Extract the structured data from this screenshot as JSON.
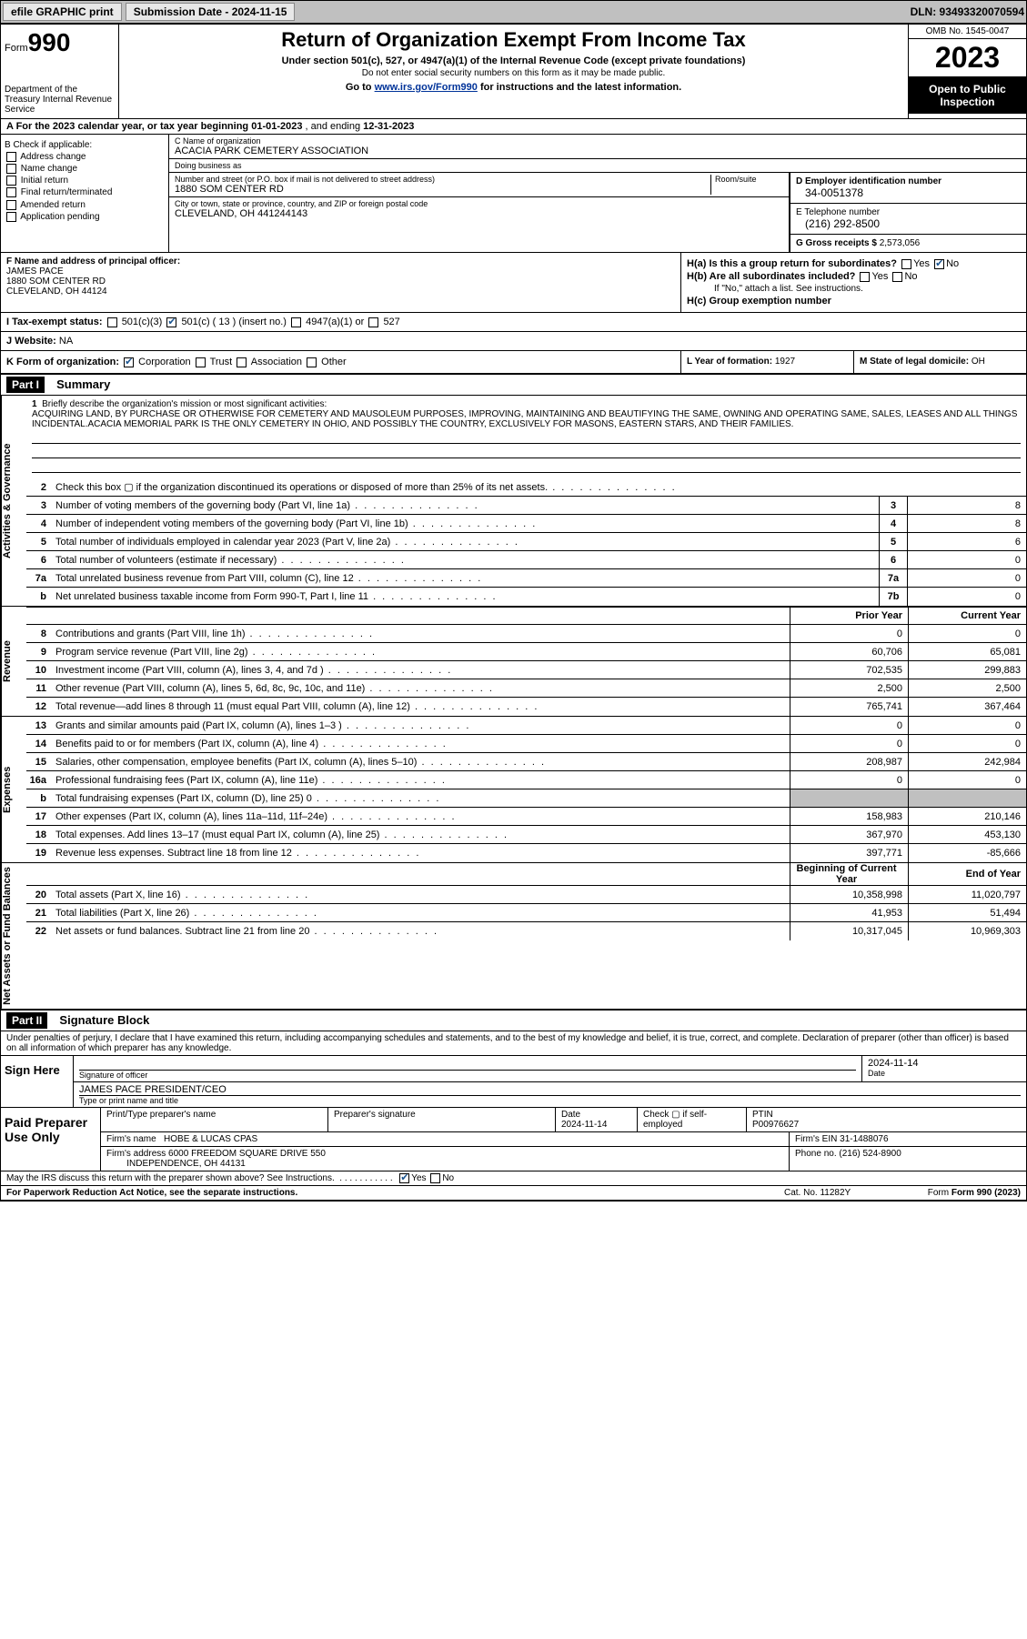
{
  "topbar": {
    "efile": "efile GRAPHIC print",
    "submission_label": "Submission Date - 2024-11-15",
    "dln": "DLN: 93493320070594"
  },
  "header": {
    "form_prefix": "Form",
    "form_num": "990",
    "title": "Return of Organization Exempt From Income Tax",
    "subtitle": "Under section 501(c), 527, or 4947(a)(1) of the Internal Revenue Code (except private foundations)",
    "ssn_note": "Do not enter social security numbers on this form as it may be made public.",
    "link_prefix": "Go to ",
    "link_url": "www.irs.gov/Form990",
    "link_suffix": " for instructions and the latest information.",
    "dept": "Department of the Treasury\nInternal Revenue Service",
    "omb": "OMB No. 1545-0047",
    "year": "2023",
    "inspect": "Open to Public Inspection"
  },
  "row_a": {
    "prefix": "A For the 2023 calendar year, or tax year beginning ",
    "begin": "01-01-2023",
    "mid": " , and ending ",
    "end": "12-31-2023"
  },
  "section_b": {
    "label": "B Check if applicable:",
    "items": [
      "Address change",
      "Name change",
      "Initial return",
      "Final return/terminated",
      "Amended return",
      "Application pending"
    ]
  },
  "section_c": {
    "name_lbl": "C Name of organization",
    "name": "ACACIA PARK CEMETERY ASSOCIATION",
    "dba_lbl": "Doing business as",
    "dba": "",
    "addr_lbl": "Number and street (or P.O. box if mail is not delivered to street address)",
    "room_lbl": "Room/suite",
    "addr": "1880 SOM CENTER RD",
    "city_lbl": "City or town, state or province, country, and ZIP or foreign postal code",
    "city": "CLEVELAND, OH  441244143"
  },
  "section_d": {
    "lbl": "D Employer identification number",
    "val": "34-0051378"
  },
  "section_e": {
    "lbl": "E Telephone number",
    "val": "(216) 292-8500"
  },
  "section_g": {
    "lbl": "G Gross receipts $",
    "val": "2,573,056"
  },
  "section_f": {
    "lbl": "F Name and address of principal officer:",
    "name": "JAMES PACE",
    "addr1": "1880 SOM CENTER RD",
    "addr2": "CLEVELAND, OH  44124"
  },
  "section_h": {
    "ha": "H(a)  Is this a group return for subordinates?",
    "hb": "H(b)  Are all subordinates included?",
    "hb_note": "If \"No,\" attach a list. See instructions.",
    "hc": "H(c)  Group exemption number ",
    "yes": "Yes",
    "no": "No"
  },
  "section_i": {
    "lbl": "I  Tax-exempt status:",
    "c3": "501(c)(3)",
    "c": "501(c) ( 13 ) (insert no.)",
    "a1": "4947(a)(1) or",
    "s527": "527"
  },
  "section_j": {
    "lbl": "J  Website: ",
    "val": "NA"
  },
  "section_k": {
    "lbl": "K Form of organization:",
    "corp": "Corporation",
    "trust": "Trust",
    "assoc": "Association",
    "other": "Other"
  },
  "section_l": {
    "lbl": "L Year of formation: ",
    "val": "1927"
  },
  "section_m": {
    "lbl": "M State of legal domicile: ",
    "val": "OH"
  },
  "part1": {
    "hdr": "Part I",
    "title": "Summary",
    "mission_lbl": "Briefly describe the organization's mission or most significant activities:",
    "mission": "ACQUIRING LAND, BY PURCHASE OR OTHERWISE FOR CEMETERY AND MAUSOLEUM PURPOSES, IMPROVING, MAINTAINING AND BEAUTIFYING THE SAME, OWNING AND OPERATING SAME, SALES, LEASES AND ALL THINGS INCIDENTAL.ACACIA MEMORIAL PARK IS THE ONLY CEMETERY IN OHIO, AND POSSIBLY THE COUNTRY, EXCLUSIVELY FOR MASONS, EASTERN STARS, AND THEIR FAMILIES."
  },
  "sidelabels": {
    "gov": "Activities & Governance",
    "rev": "Revenue",
    "exp": "Expenses",
    "net": "Net Assets or Fund Balances"
  },
  "lines_gov": [
    {
      "n": "2",
      "t": "Check this box  ▢  if the organization discontinued its operations or disposed of more than 25% of its net assets."
    },
    {
      "n": "3",
      "t": "Number of voting members of the governing body (Part VI, line 1a)",
      "box": "3",
      "v": "8"
    },
    {
      "n": "4",
      "t": "Number of independent voting members of the governing body (Part VI, line 1b)",
      "box": "4",
      "v": "8"
    },
    {
      "n": "5",
      "t": "Total number of individuals employed in calendar year 2023 (Part V, line 2a)",
      "box": "5",
      "v": "6"
    },
    {
      "n": "6",
      "t": "Total number of volunteers (estimate if necessary)",
      "box": "6",
      "v": "0"
    },
    {
      "n": "7a",
      "t": "Total unrelated business revenue from Part VIII, column (C), line 12",
      "box": "7a",
      "v": "0"
    },
    {
      "n": "b",
      "t": "Net unrelated business taxable income from Form 990-T, Part I, line 11",
      "box": "7b",
      "v": "0"
    }
  ],
  "col_headers": {
    "prior": "Prior Year",
    "current": "Current Year",
    "boy": "Beginning of Current Year",
    "eoy": "End of Year"
  },
  "lines_rev": [
    {
      "n": "8",
      "t": "Contributions and grants (Part VIII, line 1h)",
      "p": "0",
      "c": "0"
    },
    {
      "n": "9",
      "t": "Program service revenue (Part VIII, line 2g)",
      "p": "60,706",
      "c": "65,081"
    },
    {
      "n": "10",
      "t": "Investment income (Part VIII, column (A), lines 3, 4, and 7d )",
      "p": "702,535",
      "c": "299,883"
    },
    {
      "n": "11",
      "t": "Other revenue (Part VIII, column (A), lines 5, 6d, 8c, 9c, 10c, and 11e)",
      "p": "2,500",
      "c": "2,500"
    },
    {
      "n": "12",
      "t": "Total revenue—add lines 8 through 11 (must equal Part VIII, column (A), line 12)",
      "p": "765,741",
      "c": "367,464"
    }
  ],
  "lines_exp": [
    {
      "n": "13",
      "t": "Grants and similar amounts paid (Part IX, column (A), lines 1–3 )",
      "p": "0",
      "c": "0"
    },
    {
      "n": "14",
      "t": "Benefits paid to or for members (Part IX, column (A), line 4)",
      "p": "0",
      "c": "0"
    },
    {
      "n": "15",
      "t": "Salaries, other compensation, employee benefits (Part IX, column (A), lines 5–10)",
      "p": "208,987",
      "c": "242,984"
    },
    {
      "n": "16a",
      "t": "Professional fundraising fees (Part IX, column (A), line 11e)",
      "p": "0",
      "c": "0"
    },
    {
      "n": "b",
      "t": "Total fundraising expenses (Part IX, column (D), line 25) 0",
      "grey": true
    },
    {
      "n": "17",
      "t": "Other expenses (Part IX, column (A), lines 11a–11d, 11f–24e)",
      "p": "158,983",
      "c": "210,146"
    },
    {
      "n": "18",
      "t": "Total expenses. Add lines 13–17 (must equal Part IX, column (A), line 25)",
      "p": "367,970",
      "c": "453,130"
    },
    {
      "n": "19",
      "t": "Revenue less expenses. Subtract line 18 from line 12",
      "p": "397,771",
      "c": "-85,666"
    }
  ],
  "lines_net": [
    {
      "n": "20",
      "t": "Total assets (Part X, line 16)",
      "p": "10,358,998",
      "c": "11,020,797"
    },
    {
      "n": "21",
      "t": "Total liabilities (Part X, line 26)",
      "p": "41,953",
      "c": "51,494"
    },
    {
      "n": "22",
      "t": "Net assets or fund balances. Subtract line 21 from line 20",
      "p": "10,317,045",
      "c": "10,969,303"
    }
  ],
  "part2": {
    "hdr": "Part II",
    "title": "Signature Block"
  },
  "penalty": "Under penalties of perjury, I declare that I have examined this return, including accompanying schedules and statements, and to the best of my knowledge and belief, it is true, correct, and complete. Declaration of preparer (other than officer) is based on all information of which preparer has any knowledge.",
  "sign": {
    "lbl": "Sign Here",
    "sig_lbl": "Signature of officer",
    "date_lbl": "Date",
    "date": "2024-11-14",
    "name_lbl": "Type or print name and title",
    "name": "JAMES PACE  PRESIDENT/CEO"
  },
  "prep": {
    "lbl": "Paid Preparer Use Only",
    "name_lbl": "Print/Type preparer's name",
    "name": "",
    "sig_lbl": "Preparer's signature",
    "date_lbl": "Date",
    "date": "2024-11-14",
    "self_lbl": "Check ▢ if self-employed",
    "ptin_lbl": "PTIN",
    "ptin": "P00976627",
    "firm_name_lbl": "Firm's name ",
    "firm_name": "HOBE & LUCAS CPAS",
    "firm_ein_lbl": "Firm's EIN ",
    "firm_ein": "31-1488076",
    "firm_addr_lbl": "Firm's address ",
    "firm_addr1": "6000 FREEDOM SQUARE DRIVE 550",
    "firm_addr2": "INDEPENDENCE, OH  44131",
    "phone_lbl": "Phone no. ",
    "phone": "(216) 524-8900"
  },
  "discuss": {
    "txt": "May the IRS discuss this return with the preparer shown above? See Instructions.",
    "yes": "Yes",
    "no": "No"
  },
  "footer": {
    "pra": "For Paperwork Reduction Act Notice, see the separate instructions.",
    "cat": "Cat. No. 11282Y",
    "form": "Form 990 (2023)"
  }
}
